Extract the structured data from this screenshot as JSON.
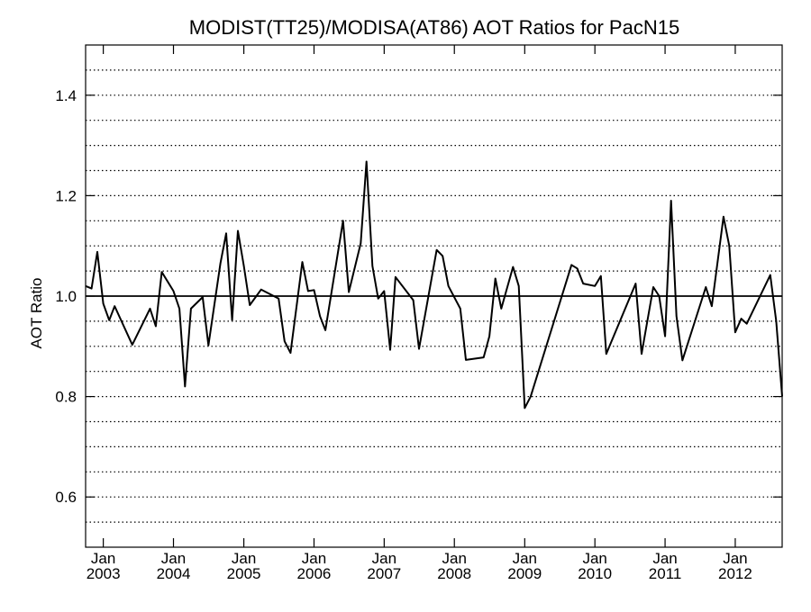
{
  "chart_data": {
    "type": "line",
    "title": "MODIST(TT25)/MODISA(AT86)  AOT Ratios for PacN15",
    "xlabel": "",
    "ylabel": "AOT Ratio",
    "ylim": [
      0.5,
      1.5
    ],
    "y_ticks": [
      0.6,
      0.8,
      1.0,
      1.2,
      1.4
    ],
    "y_tick_labels": [
      "0.6",
      "0.8",
      "1.0",
      "1.2",
      "1.4"
    ],
    "y_dotted_gridlines": [
      0.55,
      0.6,
      0.65,
      0.7,
      0.75,
      0.8,
      0.85,
      0.9,
      0.95,
      1.05,
      1.1,
      1.15,
      1.2,
      1.25,
      1.3,
      1.35,
      1.4,
      1.45
    ],
    "reference_line": 1.0,
    "grid": true,
    "x_range": [
      "2002-10-01",
      "2012-09-01"
    ],
    "x_ticks": [
      {
        "month": "Jan",
        "year": "2003",
        "date": "2003-01-01"
      },
      {
        "month": "Jan",
        "year": "2004",
        "date": "2004-01-01"
      },
      {
        "month": "Jan",
        "year": "2005",
        "date": "2005-01-01"
      },
      {
        "month": "Jan",
        "year": "2006",
        "date": "2006-01-01"
      },
      {
        "month": "Jan",
        "year": "2007",
        "date": "2007-01-01"
      },
      {
        "month": "Jan",
        "year": "2008",
        "date": "2008-01-01"
      },
      {
        "month": "Jan",
        "year": "2009",
        "date": "2009-01-01"
      },
      {
        "month": "Jan",
        "year": "2010",
        "date": "2010-01-01"
      },
      {
        "month": "Jan",
        "year": "2011",
        "date": "2011-01-01"
      },
      {
        "month": "Jan",
        "year": "2012",
        "date": "2012-01-01"
      }
    ],
    "series": [
      {
        "name": "",
        "color": "#000000",
        "points": [
          [
            "2002-10-01",
            1.02
          ],
          [
            "2002-11-01",
            1.015
          ],
          [
            "2002-12-01",
            1.088
          ],
          [
            "2003-01-01",
            0.985
          ],
          [
            "2003-02-01",
            0.952
          ],
          [
            "2003-03-01",
            0.98
          ],
          [
            "2003-06-01",
            0.903
          ],
          [
            "2003-09-01",
            0.975
          ],
          [
            "2003-10-01",
            0.94
          ],
          [
            "2003-11-01",
            1.048
          ],
          [
            "2004-01-01",
            1.01
          ],
          [
            "2004-02-01",
            0.975
          ],
          [
            "2004-03-01",
            0.82
          ],
          [
            "2004-04-01",
            0.975
          ],
          [
            "2004-06-01",
            0.998
          ],
          [
            "2004-07-01",
            0.902
          ],
          [
            "2004-09-01",
            1.065
          ],
          [
            "2004-10-01",
            1.125
          ],
          [
            "2004-11-01",
            0.952
          ],
          [
            "2004-12-01",
            1.13
          ],
          [
            "2005-01-01",
            1.06
          ],
          [
            "2005-02-01",
            0.982
          ],
          [
            "2005-04-01",
            1.013
          ],
          [
            "2005-07-01",
            0.995
          ],
          [
            "2005-08-01",
            0.91
          ],
          [
            "2005-09-01",
            0.887
          ],
          [
            "2005-11-01",
            1.068
          ],
          [
            "2005-12-01",
            1.01
          ],
          [
            "2006-01-01",
            1.012
          ],
          [
            "2006-02-01",
            0.96
          ],
          [
            "2006-03-01",
            0.932
          ],
          [
            "2006-06-01",
            1.15
          ],
          [
            "2006-07-01",
            1.008
          ],
          [
            "2006-09-01",
            1.105
          ],
          [
            "2006-10-01",
            1.268
          ],
          [
            "2006-11-01",
            1.06
          ],
          [
            "2006-12-01",
            0.995
          ],
          [
            "2007-01-01",
            1.01
          ],
          [
            "2007-02-01",
            0.893
          ],
          [
            "2007-03-01",
            1.038
          ],
          [
            "2007-06-01",
            0.992
          ],
          [
            "2007-07-01",
            0.895
          ],
          [
            "2007-10-01",
            1.092
          ],
          [
            "2007-11-01",
            1.08
          ],
          [
            "2007-12-01",
            1.02
          ],
          [
            "2008-02-01",
            0.975
          ],
          [
            "2008-03-01",
            0.873
          ],
          [
            "2008-06-01",
            0.878
          ],
          [
            "2008-07-01",
            0.92
          ],
          [
            "2008-08-01",
            1.035
          ],
          [
            "2008-09-01",
            0.975
          ],
          [
            "2008-11-01",
            1.058
          ],
          [
            "2008-12-01",
            1.02
          ],
          [
            "2009-01-01",
            0.777
          ],
          [
            "2009-02-01",
            0.8
          ],
          [
            "2009-09-01",
            1.062
          ],
          [
            "2009-10-01",
            1.055
          ],
          [
            "2009-11-01",
            1.025
          ],
          [
            "2010-01-01",
            1.02
          ],
          [
            "2010-02-01",
            1.04
          ],
          [
            "2010-03-01",
            0.885
          ],
          [
            "2010-08-01",
            1.025
          ],
          [
            "2010-09-01",
            0.885
          ],
          [
            "2010-11-01",
            1.018
          ],
          [
            "2010-12-01",
            1.0
          ],
          [
            "2011-01-01",
            0.92
          ],
          [
            "2011-02-01",
            1.19
          ],
          [
            "2011-03-01",
            0.96
          ],
          [
            "2011-04-01",
            0.872
          ],
          [
            "2011-08-01",
            1.018
          ],
          [
            "2011-09-01",
            0.98
          ],
          [
            "2011-11-01",
            1.158
          ],
          [
            "2011-12-01",
            1.1
          ],
          [
            "2012-01-01",
            0.928
          ],
          [
            "2012-02-01",
            0.955
          ],
          [
            "2012-03-01",
            0.945
          ],
          [
            "2012-07-01",
            1.042
          ],
          [
            "2012-08-01",
            0.95
          ],
          [
            "2012-09-01",
            0.8
          ]
        ]
      }
    ]
  }
}
